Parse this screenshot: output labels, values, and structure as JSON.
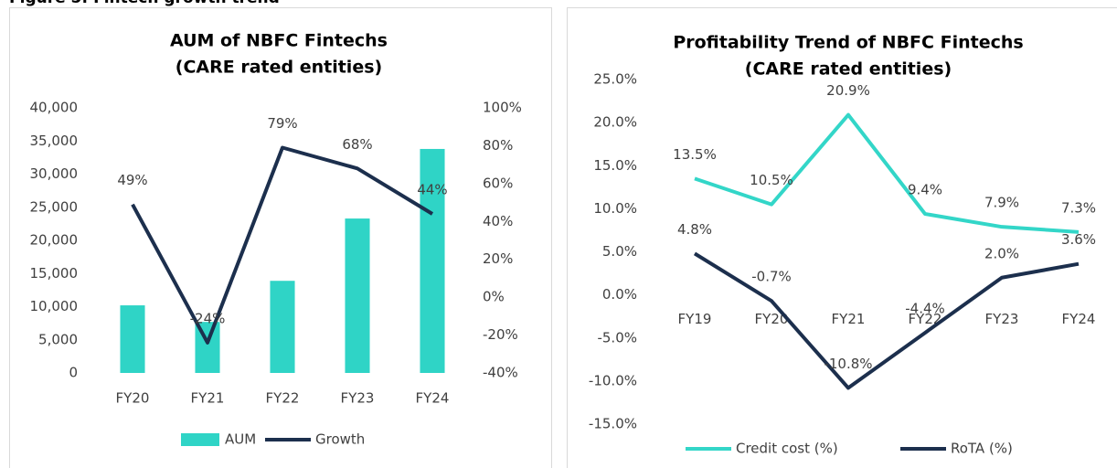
{
  "figure_title": "Figure 5: Fintech growth trend",
  "chart_data": [
    {
      "type": "combo",
      "title": [
        "AUM of NBFC Fintechs",
        "(CARE rated entities)"
      ],
      "categories": [
        "FY20",
        "FY21",
        "FY22",
        "FY23",
        "FY24"
      ],
      "series": [
        {
          "name": "AUM",
          "type": "bar",
          "color": "#2fd4c6",
          "values": [
            10200,
            7700,
            13900,
            23300,
            33800
          ]
        },
        {
          "name": "Growth",
          "type": "line",
          "axis": "y2",
          "color": "#1c2f4d",
          "values": [
            49,
            -24,
            79,
            68,
            44
          ],
          "value_labels": [
            "49%",
            "-24%",
            "79%",
            "68%",
            "44%"
          ]
        }
      ],
      "ylim": [
        0,
        40000
      ],
      "yticks": [
        0,
        {
          "value": 5000,
          "label": "5,000"
        },
        {
          "value": 10000,
          "label": "10,000"
        },
        {
          "value": 15000,
          "label": "15,000"
        },
        {
          "value": 20000,
          "label": "20,000"
        },
        {
          "value": 25000,
          "label": "25,000"
        },
        {
          "value": 30000,
          "label": "30,000"
        },
        {
          "value": 35000,
          "label": "35,000"
        },
        {
          "value": 40000,
          "label": "40,000"
        }
      ],
      "y2lim": [
        -40,
        100
      ],
      "y2ticks": [
        {
          "value": -40,
          "label": "-40%"
        },
        {
          "value": -20,
          "label": "-20%"
        },
        {
          "value": 0,
          "label": "0%"
        },
        {
          "value": 20,
          "label": "20%"
        },
        {
          "value": 40,
          "label": "40%"
        },
        {
          "value": 60,
          "label": "60%"
        },
        {
          "value": 80,
          "label": "80%"
        },
        {
          "value": 100,
          "label": "100%"
        }
      ],
      "legend": "bottom",
      "grid": false
    },
    {
      "type": "line",
      "title": [
        "Profitability Trend of NBFC Fintechs",
        "(CARE rated entities)"
      ],
      "categories": [
        "FY19",
        "FY20",
        "FY21",
        "FY22",
        "FY23",
        "FY24"
      ],
      "series": [
        {
          "name": "Credit cost (%)",
          "color": "#33d6c8",
          "values": [
            13.5,
            10.5,
            20.9,
            9.4,
            7.9,
            7.3
          ],
          "value_labels": [
            "13.5%",
            "10.5%",
            "20.9%",
            "9.4%",
            "7.9%",
            "7.3%"
          ]
        },
        {
          "name": "RoTA (%)",
          "color": "#1c2f4d",
          "values": [
            4.8,
            -0.7,
            -10.8,
            -4.4,
            2.0,
            3.6
          ],
          "value_labels": [
            "4.8%",
            "-0.7%",
            "-10.8%",
            "-4.4%",
            "2.0%",
            "3.6%"
          ]
        }
      ],
      "ylim": [
        -15,
        25
      ],
      "yticks": [
        {
          "value": -15,
          "label": "-15.0%"
        },
        {
          "value": -10,
          "label": "-10.0%"
        },
        {
          "value": -5,
          "label": "-5.0%"
        },
        {
          "value": 0,
          "label": "0.0%"
        },
        {
          "value": 5,
          "label": "5.0%"
        },
        {
          "value": 10,
          "label": "10.0%"
        },
        {
          "value": 15,
          "label": "15.0%"
        },
        {
          "value": 20,
          "label": "20.0%"
        },
        {
          "value": 25,
          "label": "25.0%"
        }
      ],
      "legend": "bottom",
      "grid": false
    }
  ]
}
